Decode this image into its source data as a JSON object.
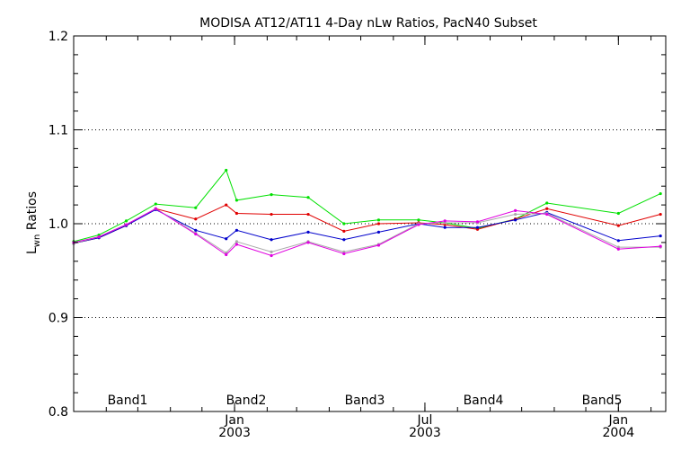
{
  "chart_data": {
    "type": "line",
    "title": "MODISA AT12/AT11 4-Day nLw Ratios, PacN40 Subset",
    "ylabel_main": "L",
    "ylabel_sub": "wn",
    "ylabel_rest": " Ratios",
    "ylim": [
      0.8,
      1.2
    ],
    "xlim": [
      "2002-08-01",
      "2004-02-15"
    ],
    "yticks": [
      "0.8",
      "0.9",
      "1.0",
      "1.1",
      "1.2"
    ],
    "grid": "dotted horizontal at 0.9, 1.0, 1.1",
    "xticks": [
      {
        "date": "2003-01-01",
        "month": "Jan",
        "year": "2003"
      },
      {
        "date": "2003-07-01",
        "month": "Jul",
        "year": "2003"
      },
      {
        "date": "2004-01-01",
        "month": "Jan",
        "year": "2004"
      }
    ],
    "x": [
      "2002-08-01",
      "2002-08-25",
      "2002-09-20",
      "2002-10-18",
      "2002-11-25",
      "2002-12-24",
      "2003-01-03",
      "2003-02-05",
      "2003-03-12",
      "2003-04-15",
      "2003-05-18",
      "2003-06-25",
      "2003-07-20",
      "2003-08-20",
      "2003-09-25",
      "2003-10-25",
      "2004-01-01",
      "2004-02-10"
    ],
    "series": [
      {
        "name": "Band1",
        "color": "#00e000",
        "values": [
          0.981,
          0.988,
          1.003,
          1.021,
          1.017,
          1.057,
          1.025,
          1.031,
          1.028,
          1.0,
          1.004,
          1.004,
          1.001,
          0.995,
          1.005,
          1.022,
          1.011,
          1.032
        ]
      },
      {
        "name": "Band2",
        "color": "#e00000",
        "values": [
          0.979,
          0.985,
          0.998,
          1.016,
          1.005,
          1.02,
          1.011,
          1.01,
          1.01,
          0.992,
          1.0,
          1.001,
          0.999,
          0.994,
          1.005,
          1.016,
          0.998,
          1.01
        ]
      },
      {
        "name": "Band3",
        "color": "#0000cc",
        "values": [
          0.979,
          0.985,
          0.998,
          1.015,
          0.993,
          0.984,
          0.993,
          0.983,
          0.991,
          0.983,
          0.991,
          1.0,
          0.996,
          0.996,
          1.004,
          1.012,
          0.982,
          0.987
        ]
      },
      {
        "name": "Band4",
        "color": "#aaaaaa",
        "values": [
          0.979,
          0.986,
          0.999,
          1.016,
          0.99,
          0.969,
          0.981,
          0.97,
          0.981,
          0.97,
          0.978,
          1.0,
          1.001,
          1.001,
          1.01,
          1.011,
          0.975,
          0.975
        ]
      },
      {
        "name": "Band5",
        "color": "#e000e0",
        "values": [
          0.98,
          0.986,
          0.999,
          1.016,
          0.989,
          0.967,
          0.978,
          0.966,
          0.98,
          0.968,
          0.977,
          0.999,
          1.003,
          1.002,
          1.014,
          1.01,
          0.973,
          0.976
        ]
      }
    ],
    "legend_placement": "bottom inside plot"
  }
}
